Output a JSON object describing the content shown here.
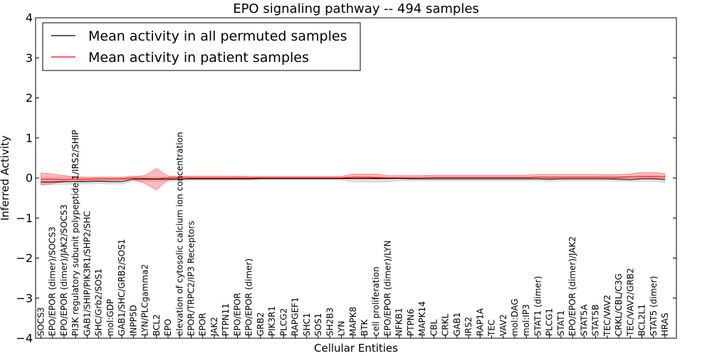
{
  "chart_data": {
    "type": "line",
    "title": "EPO signaling pathway -- 494 samples",
    "xlabel": "Cellular Entities",
    "ylabel": "Inferred Activity",
    "ylim": [
      -4,
      4
    ],
    "yticks": [
      4,
      3,
      2,
      1,
      0,
      -1,
      -2,
      -3,
      -4
    ],
    "ytick_labels": [
      "4",
      "3",
      "2",
      "1",
      "0",
      "−1",
      "−2",
      "−3",
      "−4"
    ],
    "legend_position": "top-left",
    "categories": [
      "SOCS3",
      "EPO/EPOR (dimer)/SOCS3",
      "EPO/EPOR (dimer)/JAK2/SOCS3",
      "PI3K regulatory subunit polypeptide 1/IRS2/SHIP",
      "GAB1/SHIP/PIK3R1/SHP2/SHC",
      "SHC/Grb2/SOS1",
      "mol:GDP",
      "GAB1/SHC/GRB2/SOS1",
      "INPP5D",
      "LYN/PLCgamma2",
      "BCL2",
      "EPO",
      "elevation of cytosolic calcium ion concentration",
      "EPOR/TRPC2/IP3 Receptors",
      "EPOR",
      "JAK2",
      "PTPN11",
      "EPO/EPOR",
      "EPO/EPOR (dimer)",
      "GRB2",
      "PIK3R1",
      "PLCG2",
      "RAPGEF1",
      "SHC1",
      "SOS1",
      "SH2B3",
      "LYN",
      "MAPK8",
      "BTK",
      "cell proliferation",
      "EPO/EPOR (dimer)/LYN",
      "NFKB1",
      "PTPN6",
      "MAPK14",
      "CBL",
      "CRKL",
      "GAB1",
      "IRS2",
      "RAP1A",
      "TEC",
      "VAV2",
      "mol:DAG",
      "mol:IP3",
      "STAT1 (dimer)",
      "PLCG1",
      "STAT1",
      "EPO/EPOR (dimer)/JAK2",
      "STAT5A",
      "STAT5B",
      "TEC/VAV2",
      "CRKL/CBL/C3G",
      "TEC/VAV2/GRB2",
      "BCL2L1",
      "STAT5 (dimer)",
      "HRAS"
    ],
    "series": [
      {
        "name": "Mean activity in all permuted samples",
        "color": "#000000",
        "values": [
          -0.1,
          -0.1,
          -0.09,
          -0.09,
          -0.09,
          -0.08,
          -0.09,
          -0.09,
          -0.03,
          -0.03,
          -0.03,
          -0.03,
          -0.03,
          -0.02,
          -0.02,
          -0.02,
          -0.02,
          -0.02,
          -0.02,
          -0.01,
          -0.01,
          -0.01,
          -0.01,
          -0.01,
          -0.01,
          -0.01,
          -0.01,
          -0.01,
          -0.01,
          -0.01,
          -0.01,
          -0.01,
          -0.02,
          -0.02,
          -0.02,
          -0.02,
          -0.02,
          -0.02,
          -0.02,
          -0.02,
          -0.02,
          -0.02,
          -0.02,
          -0.02,
          -0.03,
          -0.02,
          -0.02,
          -0.02,
          -0.02,
          -0.02,
          -0.03,
          -0.04,
          -0.02,
          -0.02,
          -0.04
        ],
        "band_low": [
          -0.17,
          -0.17,
          -0.16,
          -0.15,
          -0.15,
          -0.14,
          -0.15,
          -0.15,
          -0.08,
          -0.08,
          -0.08,
          -0.08,
          -0.08,
          -0.06,
          -0.06,
          -0.06,
          -0.06,
          -0.06,
          -0.06,
          -0.05,
          -0.05,
          -0.05,
          -0.05,
          -0.05,
          -0.05,
          -0.05,
          -0.05,
          -0.1,
          -0.1,
          -0.1,
          -0.1,
          -0.07,
          -0.07,
          -0.07,
          -0.07,
          -0.07,
          -0.07,
          -0.07,
          -0.07,
          -0.07,
          -0.07,
          -0.07,
          -0.07,
          -0.07,
          -0.08,
          -0.07,
          -0.07,
          -0.07,
          -0.07,
          -0.07,
          -0.08,
          -0.09,
          -0.08,
          -0.08,
          -0.12
        ],
        "band_high": [
          0.02,
          0.02,
          0.02,
          0.02,
          0.02,
          0.02,
          0.02,
          0.02,
          0.03,
          0.03,
          0.03,
          0.03,
          0.03,
          0.03,
          0.03,
          0.03,
          0.03,
          0.03,
          0.03,
          0.03,
          0.03,
          0.03,
          0.03,
          0.03,
          0.03,
          0.03,
          0.03,
          0.03,
          0.03,
          0.03,
          0.03,
          0.03,
          0.03,
          0.03,
          0.03,
          0.03,
          0.03,
          0.03,
          0.03,
          0.03,
          0.03,
          0.03,
          0.03,
          0.03,
          0.03,
          0.03,
          0.03,
          0.03,
          0.03,
          0.03,
          0.03,
          0.03,
          0.03,
          0.03,
          0.03
        ]
      },
      {
        "name": "Mean activity in patient samples",
        "color": "#ff0000",
        "values": [
          -0.03,
          -0.03,
          -0.04,
          -0.03,
          -0.03,
          -0.02,
          -0.02,
          -0.02,
          0.0,
          -0.01,
          -0.02,
          0.0,
          0.0,
          0.0,
          0.0,
          0.0,
          0.0,
          0.0,
          0.0,
          0.0,
          0.0,
          0.0,
          0.0,
          0.0,
          0.0,
          0.0,
          0.0,
          0.02,
          0.02,
          0.01,
          0.0,
          0.0,
          0.0,
          0.0,
          0.01,
          0.01,
          0.01,
          0.01,
          0.01,
          0.01,
          0.01,
          0.01,
          0.01,
          0.02,
          0.02,
          0.02,
          0.02,
          0.02,
          0.02,
          0.02,
          0.02,
          0.03,
          0.04,
          0.04,
          0.03
        ],
        "band_low": [
          -0.17,
          -0.14,
          -0.1,
          -0.08,
          -0.07,
          -0.06,
          -0.06,
          -0.05,
          -0.04,
          -0.14,
          -0.3,
          -0.05,
          -0.03,
          -0.03,
          -0.03,
          -0.03,
          -0.03,
          -0.03,
          -0.03,
          -0.03,
          -0.03,
          -0.03,
          -0.03,
          -0.03,
          -0.03,
          -0.03,
          -0.03,
          -0.03,
          -0.03,
          -0.03,
          -0.03,
          -0.02,
          -0.02,
          -0.02,
          -0.02,
          -0.02,
          -0.02,
          -0.02,
          -0.02,
          -0.02,
          -0.02,
          -0.02,
          -0.02,
          -0.02,
          -0.02,
          -0.02,
          -0.02,
          -0.02,
          -0.02,
          -0.02,
          -0.01,
          -0.01,
          0.0,
          0.0,
          -0.01
        ],
        "band_high": [
          0.13,
          0.1,
          0.06,
          0.03,
          0.02,
          0.02,
          0.02,
          0.02,
          0.04,
          0.06,
          0.24,
          0.05,
          0.05,
          0.05,
          0.05,
          0.05,
          0.05,
          0.05,
          0.04,
          0.04,
          0.04,
          0.04,
          0.04,
          0.04,
          0.04,
          0.04,
          0.04,
          0.1,
          0.1,
          0.1,
          0.06,
          0.06,
          0.06,
          0.06,
          0.07,
          0.07,
          0.07,
          0.07,
          0.07,
          0.07,
          0.07,
          0.07,
          0.07,
          0.09,
          0.09,
          0.09,
          0.09,
          0.09,
          0.09,
          0.08,
          0.09,
          0.1,
          0.14,
          0.14,
          0.11
        ]
      }
    ]
  }
}
